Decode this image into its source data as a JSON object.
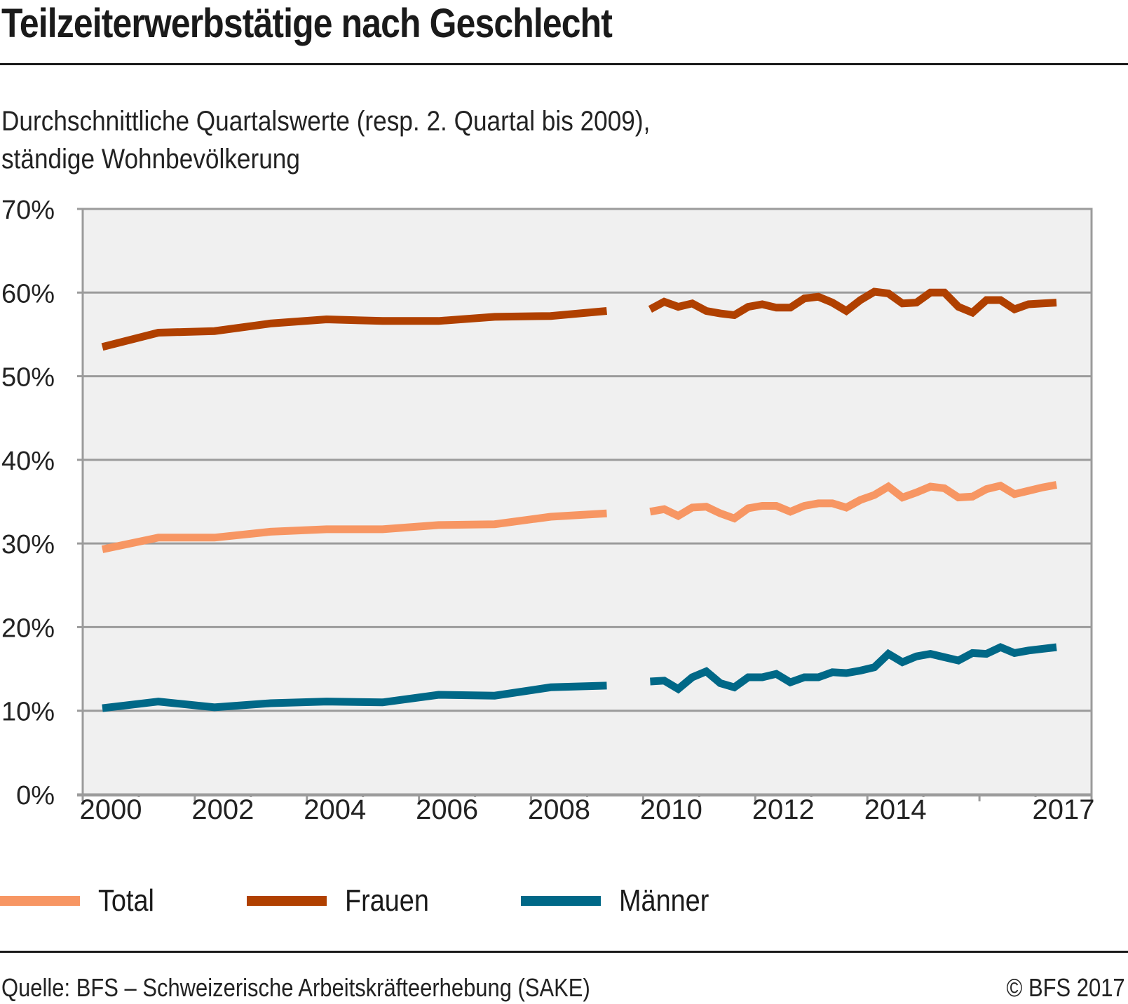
{
  "header": {
    "title": "Teilzeiterwerbstätige nach Geschlecht",
    "subtitle_line1": "Durchschnittliche Quartalswerte (resp. 2. Quartal bis 2009),",
    "subtitle_line2": "ständige Wohnbevölkerung"
  },
  "footer": {
    "source": "Quelle: BFS – Schweizerische Arbeitskräfteerhebung (SAKE)",
    "copyright": "© BFS 2017"
  },
  "colors": {
    "total": "#F79663",
    "frauen": "#B04000",
    "maenner": "#006887",
    "plot_bg": "#F0F0F0",
    "axis": "#9B9B9B"
  },
  "chart_data": {
    "type": "line",
    "title": "Teilzeiterwerbstätige nach Geschlecht",
    "subtitle": "Durchschnittliche Quartalswerte (resp. 2. Quartal bis 2009), ständige Wohnbevölkerung",
    "xlabel": "",
    "ylabel": "",
    "xlim": [
      2000,
      2018
    ],
    "ylim": [
      0,
      70
    ],
    "yticks": [
      0,
      10,
      20,
      30,
      40,
      50,
      60,
      70
    ],
    "ytick_labels": [
      "0%",
      "10%",
      "20%",
      "30%",
      "40%",
      "50%",
      "60%",
      "70%"
    ],
    "xtick_labels": [
      {
        "label": "2000",
        "year": 2000
      },
      {
        "label": "2002",
        "year": 2002
      },
      {
        "label": "2004",
        "year": 2004
      },
      {
        "label": "2006",
        "year": 2006
      },
      {
        "label": "2008",
        "year": 2008
      },
      {
        "label": "2010",
        "year": 2010
      },
      {
        "label": "2012",
        "year": 2012
      },
      {
        "label": "2014",
        "year": 2014
      },
      {
        "label": "2017",
        "year": 2017
      }
    ],
    "grid": true,
    "legend_position": "bottom-left",
    "annual_x": [
      2000.35,
      2001.35,
      2002.35,
      2003.35,
      2004.35,
      2005.35,
      2006.35,
      2007.35,
      2008.35,
      2009.35
    ],
    "quarterly_x": [
      2010.125,
      2010.375,
      2010.625,
      2010.875,
      2011.125,
      2011.375,
      2011.625,
      2011.875,
      2012.125,
      2012.375,
      2012.625,
      2012.875,
      2013.125,
      2013.375,
      2013.625,
      2013.875,
      2014.125,
      2014.375,
      2014.625,
      2014.875,
      2015.125,
      2015.375,
      2015.625,
      2015.875,
      2016.125,
      2016.375,
      2016.625,
      2016.875,
      2017.125,
      2017.375
    ],
    "series": [
      {
        "name": "Total",
        "key": "total",
        "annual": [
          29.3,
          30.7,
          30.7,
          31.4,
          31.7,
          31.7,
          32.2,
          32.3,
          33.2,
          33.6
        ],
        "quarterly": [
          33.8,
          34.1,
          33.3,
          34.3,
          34.4,
          33.6,
          33.0,
          34.2,
          34.5,
          34.5,
          33.8,
          34.5,
          34.8,
          34.8,
          34.3,
          35.2,
          35.8,
          36.8,
          35.5,
          36.1,
          36.8,
          36.6,
          35.5,
          35.6,
          36.5,
          36.9,
          35.9,
          36.3,
          36.7,
          37.0
        ]
      },
      {
        "name": "Frauen",
        "key": "frauen",
        "annual": [
          53.5,
          55.2,
          55.4,
          56.3,
          56.8,
          56.6,
          56.6,
          57.1,
          57.2,
          57.8
        ],
        "quarterly": [
          58.0,
          58.9,
          58.3,
          58.7,
          57.8,
          57.5,
          57.3,
          58.3,
          58.6,
          58.2,
          58.2,
          59.3,
          59.5,
          58.8,
          57.8,
          59.1,
          60.1,
          59.9,
          58.7,
          58.8,
          60.0,
          60.0,
          58.3,
          57.6,
          59.1,
          59.1,
          58.0,
          58.6,
          58.7,
          58.8
        ]
      },
      {
        "name": "Männer",
        "key": "maenner",
        "annual": [
          10.3,
          11.1,
          10.4,
          10.9,
          11.1,
          11.0,
          11.9,
          11.8,
          12.8,
          13.0
        ],
        "quarterly": [
          13.5,
          13.6,
          12.6,
          14.0,
          14.7,
          13.3,
          12.8,
          14.0,
          14.0,
          14.4,
          13.4,
          14.0,
          14.0,
          14.6,
          14.5,
          14.8,
          15.2,
          16.8,
          15.8,
          16.5,
          16.8,
          16.4,
          16.0,
          16.9,
          16.8,
          17.6,
          16.9,
          17.2,
          17.4,
          17.6
        ]
      }
    ]
  }
}
